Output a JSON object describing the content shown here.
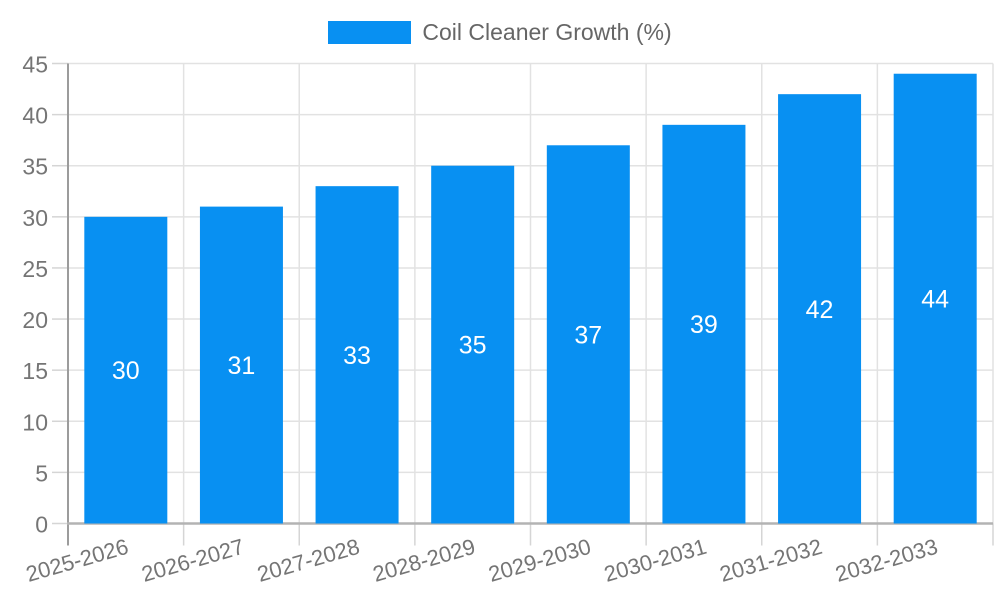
{
  "chart_data": {
    "type": "bar",
    "title": "",
    "categories": [
      "2025-2026",
      "2026-2027",
      "2027-2028",
      "2028-2029",
      "2029-2030",
      "2030-2031",
      "2031-2032",
      "2032-2033"
    ],
    "series": [
      {
        "name": "Coil Cleaner Growth (%)",
        "values": [
          30,
          31,
          33,
          35,
          37,
          39,
          42,
          44
        ],
        "color": "#0890F2"
      }
    ],
    "data_labels": [
      "30",
      "31",
      "33",
      "35",
      "37",
      "39",
      "42",
      "44"
    ],
    "data_label_color": "#FFFFFF",
    "xlabel": "",
    "ylabel": "",
    "ylim": [
      0,
      45
    ],
    "yticks": [
      0,
      5,
      10,
      15,
      20,
      25,
      30,
      35,
      40,
      45
    ],
    "ytick_labels": [
      "0",
      "5",
      "10",
      "15",
      "20",
      "25",
      "30",
      "35",
      "40",
      "45"
    ],
    "grid": "on",
    "legend_position": "top",
    "colors": {
      "bar": "#0890F2",
      "grid_line": "#E2E2E2",
      "tick_line": "#D5D5D5",
      "axis_line": "#9C9C9C",
      "baseline": "#B3B3B3",
      "axis_label_text": "#757575",
      "legend_text": "#666666",
      "background": "#FFFFFF"
    }
  }
}
